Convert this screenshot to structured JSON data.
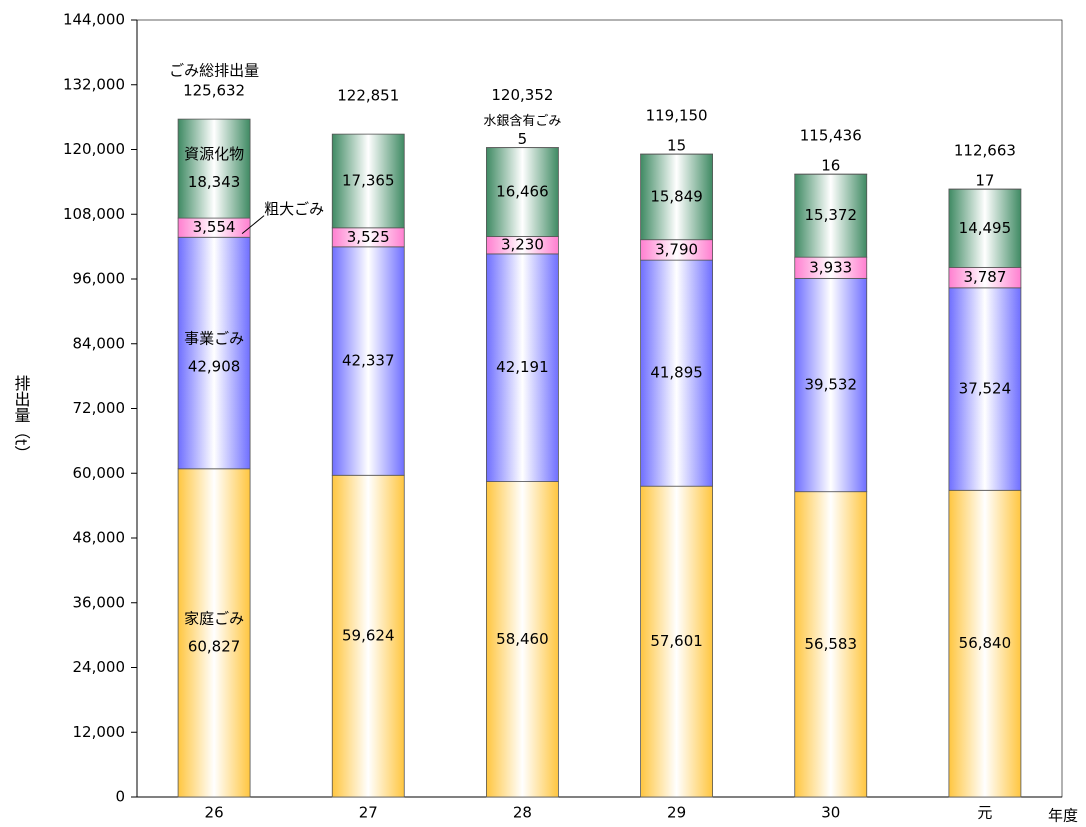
{
  "chart_data": {
    "type": "stacked_bar",
    "x_label": "年度",
    "y_label": "排出量（t）",
    "categories": [
      "26",
      "27",
      "28",
      "29",
      "30",
      "元"
    ],
    "ylim": [
      0,
      144000
    ],
    "yticks": [
      0,
      {
        "value": 12000,
        "label": "12,000"
      },
      {
        "value": 24000,
        "label": "24,000"
      },
      {
        "value": 36000,
        "label": "36,000"
      },
      {
        "value": 48000,
        "label": "48,000"
      },
      {
        "value": 60000,
        "label": "60,000"
      },
      {
        "value": 72000,
        "label": "72,000"
      },
      {
        "value": 84000,
        "label": "84,000"
      },
      {
        "value": 96000,
        "label": "96,000"
      },
      {
        "value": 108000,
        "label": "108,000"
      },
      {
        "value": 120000,
        "label": "120,000"
      },
      {
        "value": 132000,
        "label": "132,000"
      },
      {
        "value": 144000,
        "label": "144,000"
      }
    ],
    "grid": false,
    "series": [
      {
        "name": "家庭ごみ",
        "name_at": 0,
        "color": "#ffc640",
        "values": [
          60827,
          59624,
          58460,
          57601,
          56583,
          56840
        ],
        "value_labels": [
          "60,827",
          "59,624",
          "58,460",
          "57,601",
          "56,583",
          "56,840"
        ]
      },
      {
        "name": "事業ごみ",
        "name_at": 0,
        "color": "#6f6fff",
        "values": [
          42908,
          42337,
          42191,
          41895,
          39532,
          37524
        ],
        "value_labels": [
          "42,908",
          "42,337",
          "42,191",
          "41,895",
          "39,532",
          "37,524"
        ]
      },
      {
        "name": "粗大ごみ",
        "name_at": 0,
        "color": "#ff7fd0",
        "values": [
          3554,
          3525,
          3230,
          3790,
          3933,
          3787
        ],
        "value_labels": [
          "3,554",
          "3,525",
          "3,230",
          "3,790",
          "3,933",
          "3,787"
        ]
      },
      {
        "name": "資源化物",
        "name_at": 0,
        "color": "#3f8a63",
        "values": [
          18343,
          17365,
          16466,
          15849,
          15372,
          14495
        ],
        "value_labels": [
          "18,343",
          "17,365",
          "16,466",
          "15,849",
          "15,372",
          "14,495"
        ]
      },
      {
        "name": "水銀含有ごみ",
        "name_at": 2,
        "color": "#2aa0a0",
        "values": [
          null,
          null,
          5,
          15,
          16,
          17
        ]
      }
    ],
    "totals": {
      "name": "ごみ総排出量",
      "values": [
        125632,
        122851,
        120352,
        119150,
        115436,
        112663
      ],
      "value_labels": [
        "125,632",
        "122,851",
        "120,352",
        "119,150",
        "115,436",
        "112,663"
      ]
    }
  }
}
